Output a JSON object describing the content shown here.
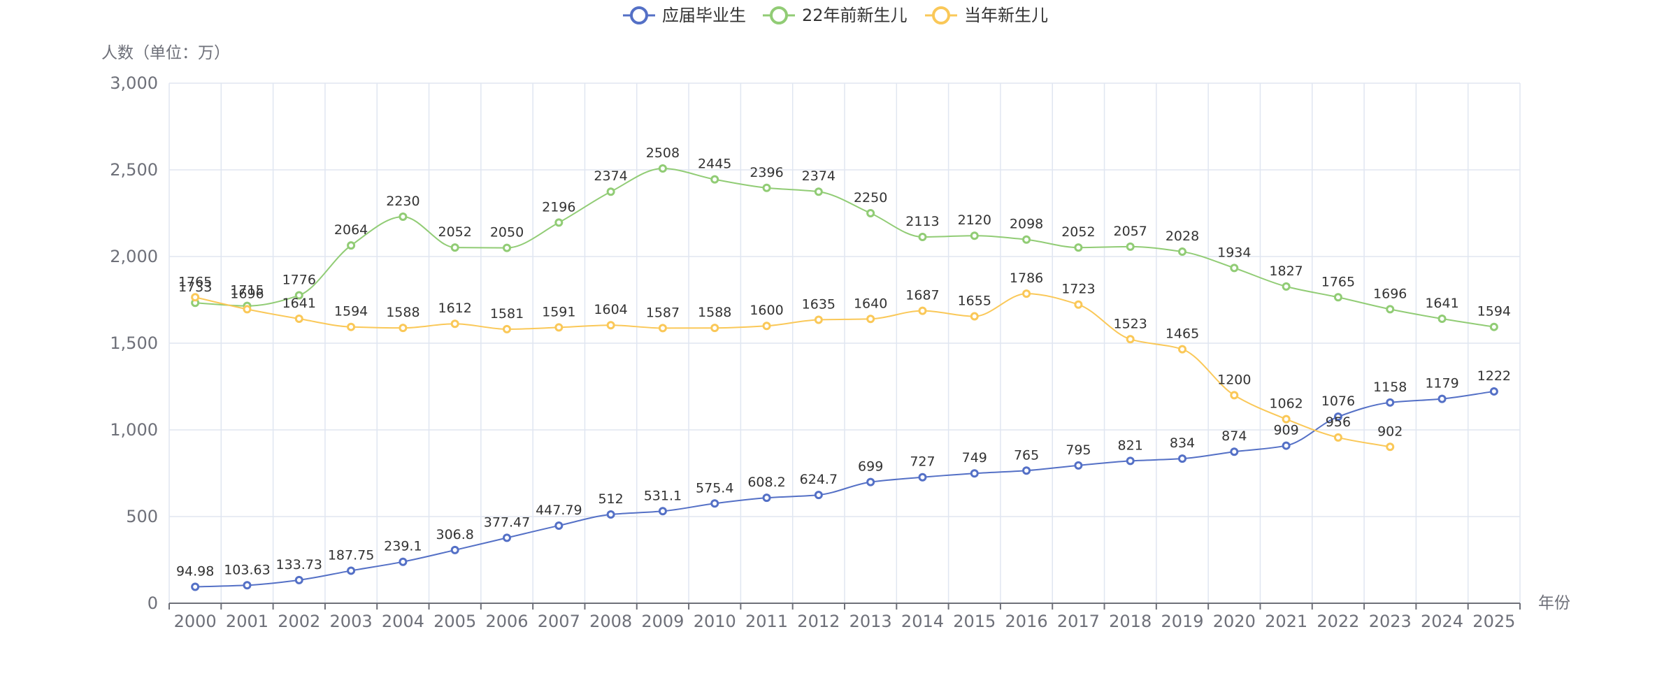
{
  "chart_data": {
    "type": "line",
    "smooth": true,
    "x_axis_name": "年份",
    "y_axis_name": "人数（单位：万）",
    "categories": [
      "2000",
      "2001",
      "2002",
      "2003",
      "2004",
      "2005",
      "2006",
      "2007",
      "2008",
      "2009",
      "2010",
      "2011",
      "2012",
      "2013",
      "2014",
      "2015",
      "2016",
      "2017",
      "2018",
      "2019",
      "2020",
      "2021",
      "2022",
      "2023",
      "2024",
      "2025"
    ],
    "ylim": [
      0,
      3000
    ],
    "y_ticks": [
      0,
      500,
      1000,
      1500,
      2000,
      2500,
      3000
    ],
    "y_tick_labels": [
      "0",
      "500",
      "1,000",
      "1,500",
      "2,000",
      "2,500",
      "3,000"
    ],
    "grid": true,
    "legend_position": "top-center",
    "series": [
      {
        "name": "应届毕业生",
        "color": "#5470c6",
        "values": [
          94.98,
          103.63,
          133.73,
          187.75,
          239.1,
          306.8,
          377.47,
          447.79,
          512,
          531.1,
          575.4,
          608.2,
          624.7,
          699,
          727,
          749,
          765,
          795,
          821,
          834,
          874,
          909,
          1076,
          1158,
          1179,
          1222
        ],
        "labels": [
          "94.98",
          "103.63",
          "133.73",
          "187.75",
          "239.1",
          "306.8",
          "377.47",
          "447.79",
          "512",
          "531.1",
          "575.4",
          "608.2",
          "624.7",
          "699",
          "727",
          "749",
          "765",
          "795",
          "821",
          "834",
          "874",
          "909",
          "1076",
          "1158",
          "1179",
          "1222"
        ]
      },
      {
        "name": "22年前新生儿",
        "color": "#91cc75",
        "values": [
          1733,
          1715,
          1776,
          2064,
          2230,
          2052,
          2050,
          2196,
          2374,
          2508,
          2445,
          2396,
          2374,
          2250,
          2113,
          2120,
          2098,
          2052,
          2057,
          2028,
          1934,
          1827,
          1765,
          1696,
          1641,
          1594
        ],
        "labels": [
          "1733",
          "1715",
          "1776",
          "2064",
          "2230",
          "2052",
          "2050",
          "2196",
          "2374",
          "2508",
          "2445",
          "2396",
          "2374",
          "2250",
          "2113",
          "2120",
          "2098",
          "2052",
          "2057",
          "2028",
          "1934",
          "1827",
          "1765",
          "1696",
          "1641",
          "1594"
        ]
      },
      {
        "name": "当年新生儿",
        "color": "#fac858",
        "values": [
          1765,
          1696,
          1641,
          1594,
          1588,
          1612,
          1581,
          1591,
          1604,
          1587,
          1588,
          1600,
          1635,
          1640,
          1687,
          1655,
          1786,
          1723,
          1523,
          1465,
          1200,
          1062,
          956,
          902,
          null,
          null
        ],
        "labels": [
          "1765",
          "1696",
          "1641",
          "1594",
          "1588",
          "1612",
          "1581",
          "1591",
          "1604",
          "1587",
          "1588",
          "1600",
          "1635",
          "1640",
          "1687",
          "1655",
          "1786",
          "1723",
          "1523",
          "1465",
          "1200",
          "1062",
          "956",
          "902",
          null,
          null
        ]
      }
    ]
  }
}
